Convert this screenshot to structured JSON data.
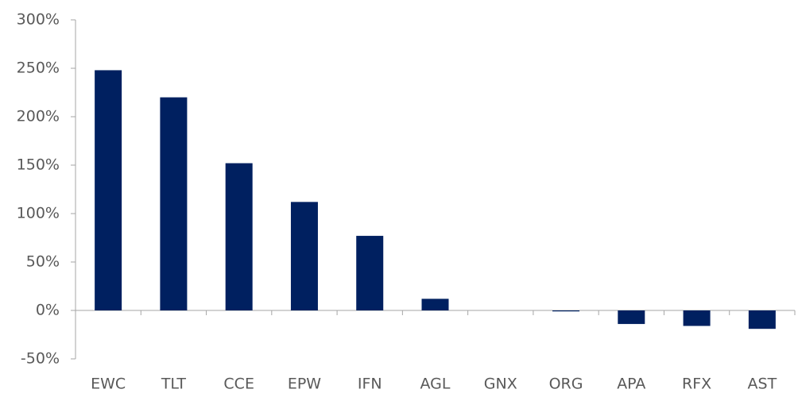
{
  "chart_data": {
    "type": "bar",
    "categories": [
      "EWC",
      "TLT",
      "CCE",
      "EPW",
      "IFN",
      "AGL",
      "GNX",
      "ORG",
      "APA",
      "RFX",
      "AST"
    ],
    "values": [
      248,
      220,
      152,
      112,
      77,
      12,
      0,
      -1,
      -14,
      -16,
      -19
    ],
    "color": "#002060",
    "ylim": [
      -50,
      300
    ],
    "yticks": [
      {
        "value": -50,
        "label": "-50%"
      },
      {
        "value": 0,
        "label": "0%"
      },
      {
        "value": 50,
        "label": "50%"
      },
      {
        "value": 100,
        "label": "100%"
      },
      {
        "value": 150,
        "label": "150%"
      },
      {
        "value": 200,
        "label": "200%"
      },
      {
        "value": 250,
        "label": "250%"
      },
      {
        "value": 300,
        "label": "300%"
      }
    ],
    "grid": false
  }
}
